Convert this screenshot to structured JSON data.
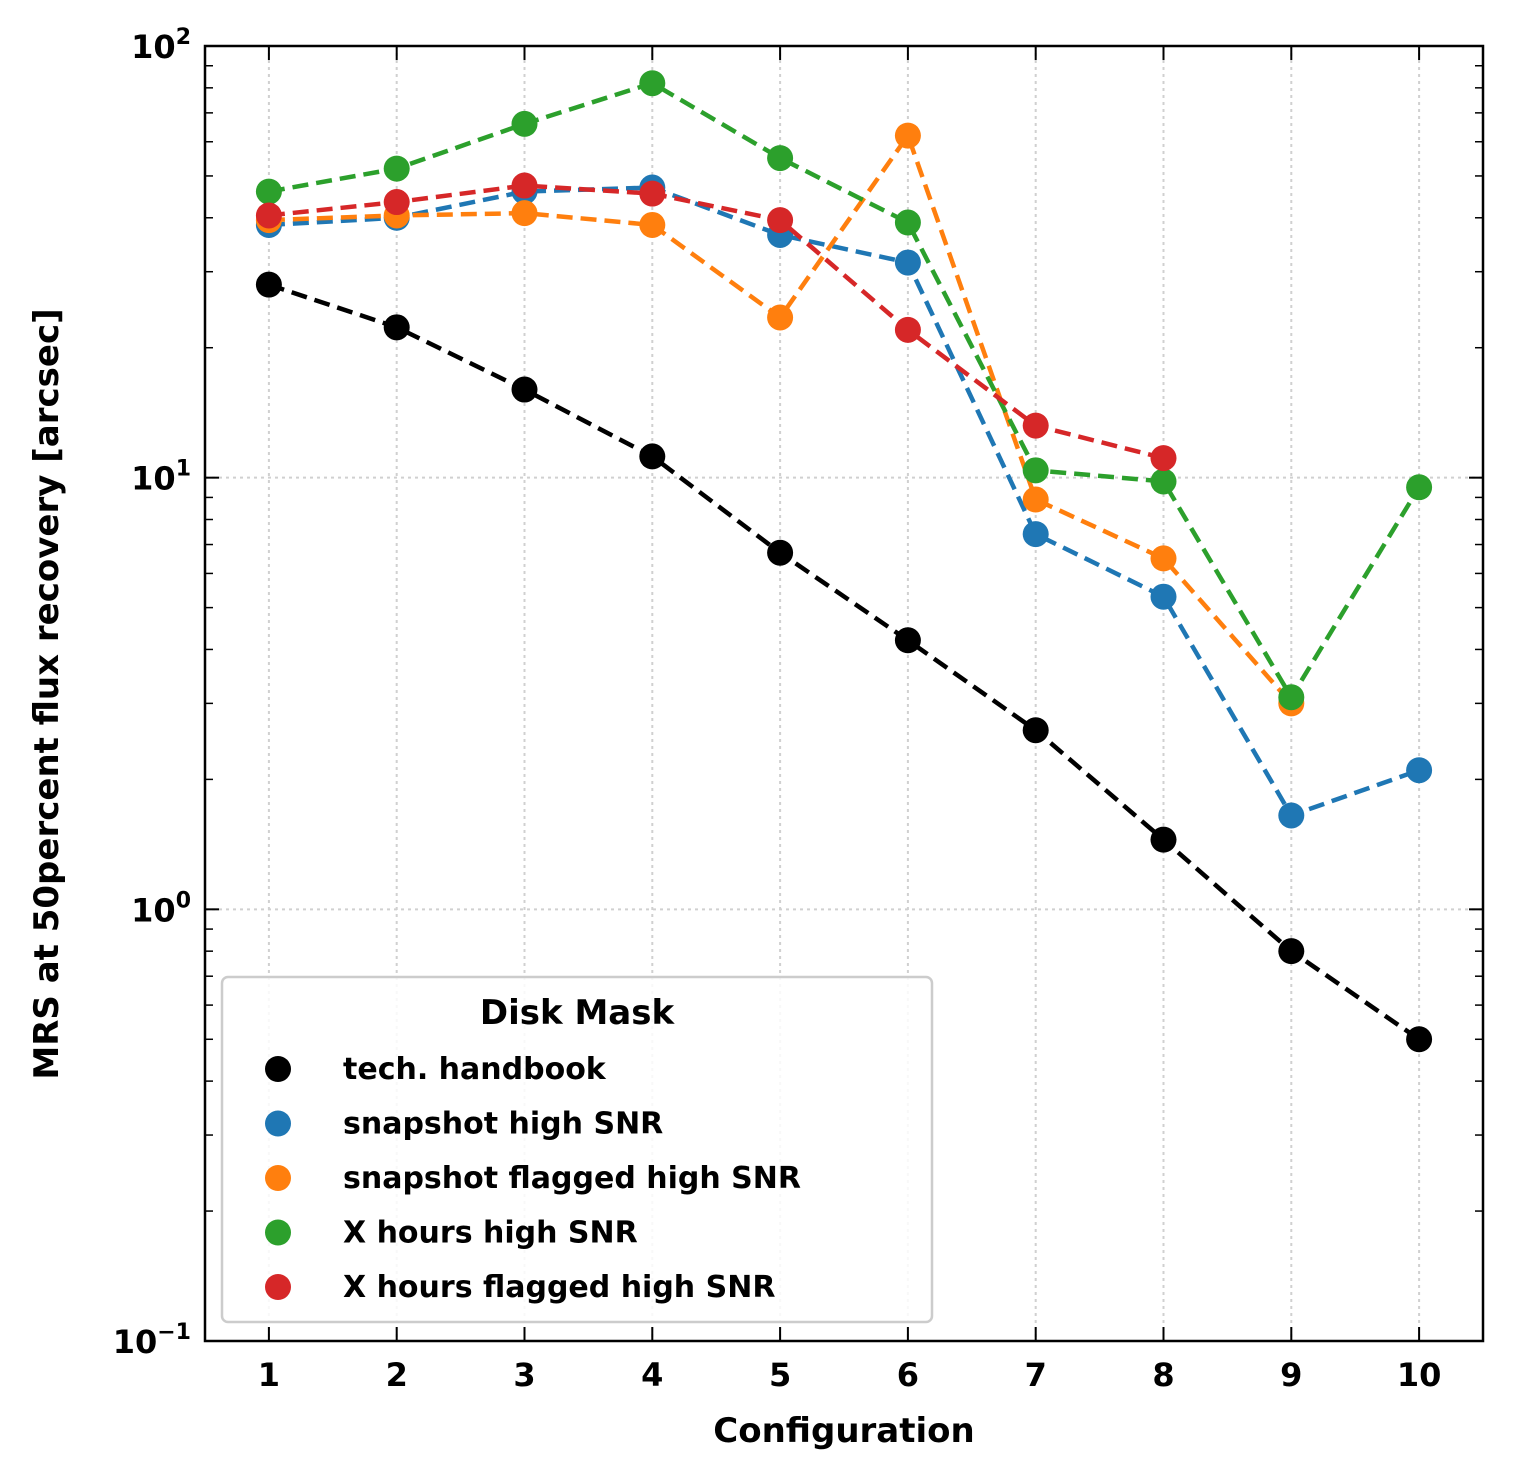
{
  "chart_data": {
    "type": "line",
    "xlabel": "Configuration",
    "ylabel": "MRS at 50percent flux recovery [arcsec]",
    "x": [
      1,
      2,
      3,
      4,
      5,
      6,
      7,
      8,
      9,
      10
    ],
    "xlim": [
      0.5,
      10.5
    ],
    "ylim": [
      0.1,
      100
    ],
    "yscale": "log",
    "y_ticks": [
      {
        "value": 0.1,
        "base": "10",
        "exp": "−1"
      },
      {
        "value": 1,
        "base": "10",
        "exp": "0"
      },
      {
        "value": 10,
        "base": "10",
        "exp": "1"
      },
      {
        "value": 100,
        "base": "10",
        "exp": "2"
      }
    ],
    "grid": true,
    "legend": {
      "title": "Disk Mask",
      "placement": "lower-left"
    },
    "series": [
      {
        "name": "tech. handbook",
        "color": "#000000",
        "values": [
          28,
          22.3,
          16,
          11.2,
          6.7,
          4.2,
          2.6,
          1.45,
          0.8,
          0.5
        ]
      },
      {
        "name": "snapshot high SNR",
        "color": "#1f77b4",
        "values": [
          38.5,
          40,
          46,
          47,
          36.5,
          31.5,
          7.4,
          5.3,
          1.65,
          2.1
        ]
      },
      {
        "name": "snapshot flagged high SNR",
        "color": "#ff7f0e",
        "values": [
          39.5,
          40.5,
          41,
          38.5,
          23.5,
          62,
          8.9,
          6.5,
          3.0,
          null
        ]
      },
      {
        "name": "X hours high SNR",
        "color": "#2ca02c",
        "values": [
          46,
          52,
          66,
          82,
          55,
          39,
          10.4,
          9.8,
          3.1,
          9.5
        ]
      },
      {
        "name": "X hours flagged high SNR",
        "color": "#d62728",
        "values": [
          40.5,
          43.5,
          47.5,
          45.5,
          39.5,
          22,
          13.2,
          11.1,
          null,
          null
        ]
      }
    ]
  }
}
